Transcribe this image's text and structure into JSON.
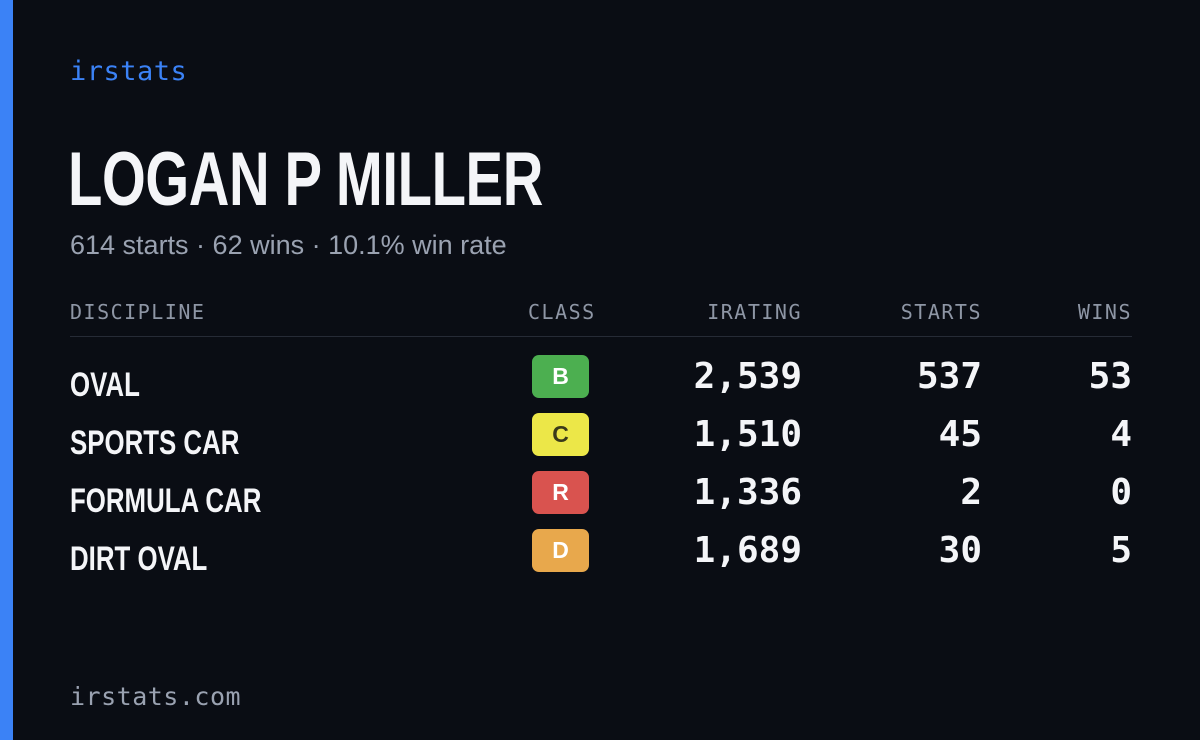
{
  "theme": {
    "accent": "#3b82f6",
    "background": "#0a0d14",
    "text": "#f4f5f8",
    "muted": "#9aa2b1"
  },
  "brand": "irstats",
  "driver": {
    "name": "LOGAN P MILLER",
    "summary": "614 starts · 62 wins · 10.1% win rate"
  },
  "table": {
    "headers": {
      "discipline": "DISCIPLINE",
      "class": "CLASS",
      "irating": "IRATING",
      "starts": "STARTS",
      "wins": "WINS"
    },
    "rows": [
      {
        "discipline": "OVAL",
        "class": "B",
        "class_color": "#4caf50",
        "class_text_color": "#ffffff",
        "irating": "2,539",
        "starts": "537",
        "wins": "53"
      },
      {
        "discipline": "SPORTS CAR",
        "class": "C",
        "class_color": "#ece748",
        "class_text_color": "#3a3a1a",
        "irating": "1,510",
        "starts": "45",
        "wins": "4"
      },
      {
        "discipline": "FORMULA CAR",
        "class": "R",
        "class_color": "#d9534f",
        "class_text_color": "#ffffff",
        "irating": "1,336",
        "starts": "2",
        "wins": "0"
      },
      {
        "discipline": "DIRT OVAL",
        "class": "D",
        "class_color": "#e8a84c",
        "class_text_color": "#ffffff",
        "irating": "1,689",
        "starts": "30",
        "wins": "5"
      }
    ]
  },
  "footer": "irstats.com"
}
